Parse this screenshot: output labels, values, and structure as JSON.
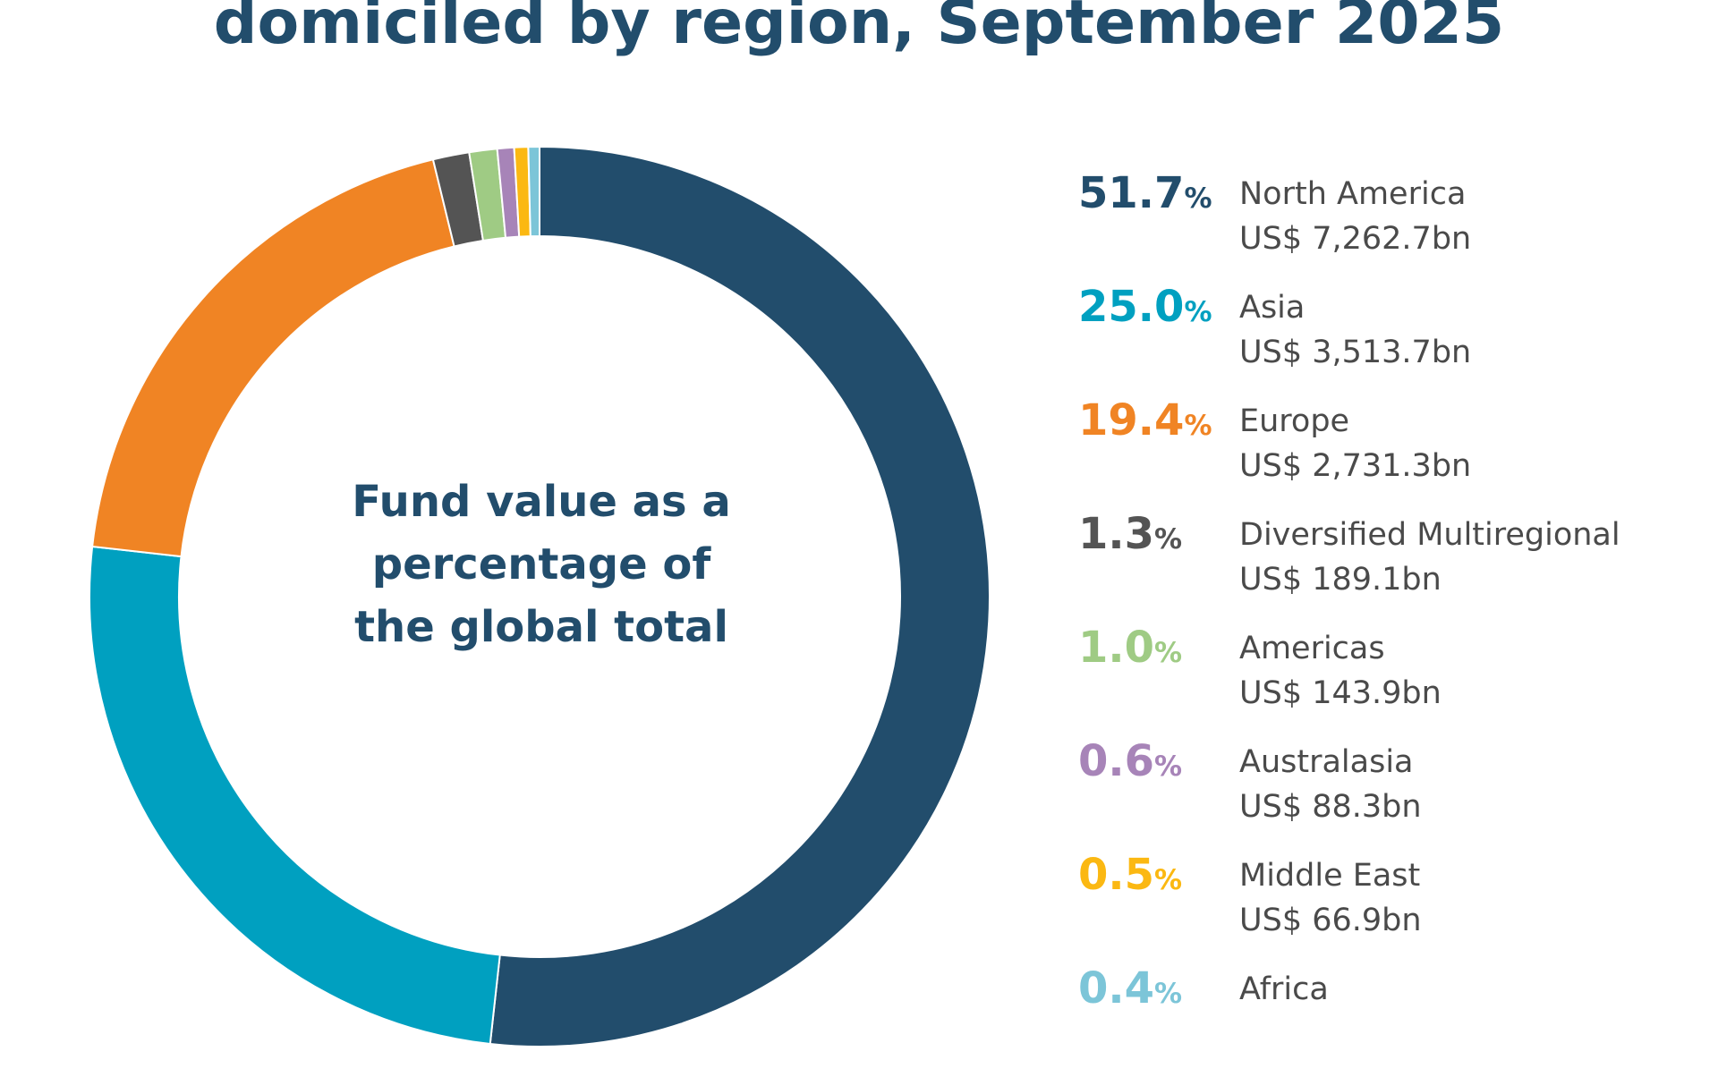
{
  "title": "domiciled by region, September 2025",
  "center_label": "Fund value as a percentage of the global total",
  "chart_data": {
    "type": "pie",
    "style": "donut",
    "title": "domiciled by region, September 2025",
    "center_text": "Fund value as a percentage of the global total",
    "legend_position": "right",
    "unit": "%",
    "slices": [
      {
        "label": "North America",
        "percent": 51.7,
        "value_text": "US$ 7,262.7bn",
        "value_bn": 7262.7,
        "color": "#224d6c"
      },
      {
        "label": "Asia",
        "percent": 25.0,
        "value_text": "US$ 3,513.7bn",
        "value_bn": 3513.7,
        "color": "#00a0c0"
      },
      {
        "label": "Europe",
        "percent": 19.4,
        "value_text": "US$ 2,731.3bn",
        "value_bn": 2731.3,
        "color": "#f08424"
      },
      {
        "label": "Diversified Multiregional",
        "percent": 1.3,
        "value_text": "US$ 189.1bn",
        "value_bn": 189.1,
        "color": "#545454"
      },
      {
        "label": "Americas",
        "percent": 1.0,
        "value_text": "US$ 143.9bn",
        "value_bn": 143.9,
        "color": "#9fcb84"
      },
      {
        "label": "Australasia",
        "percent": 0.6,
        "value_text": "US$ 88.3bn",
        "value_bn": 88.3,
        "color": "#a784b8"
      },
      {
        "label": "Middle East",
        "percent": 0.5,
        "value_text": "US$ 66.9bn",
        "value_bn": 66.9,
        "color": "#fbb812"
      },
      {
        "label": "Africa",
        "percent": 0.4,
        "value_text": "",
        "value_bn": null,
        "color": "#7cc5d8"
      }
    ]
  }
}
